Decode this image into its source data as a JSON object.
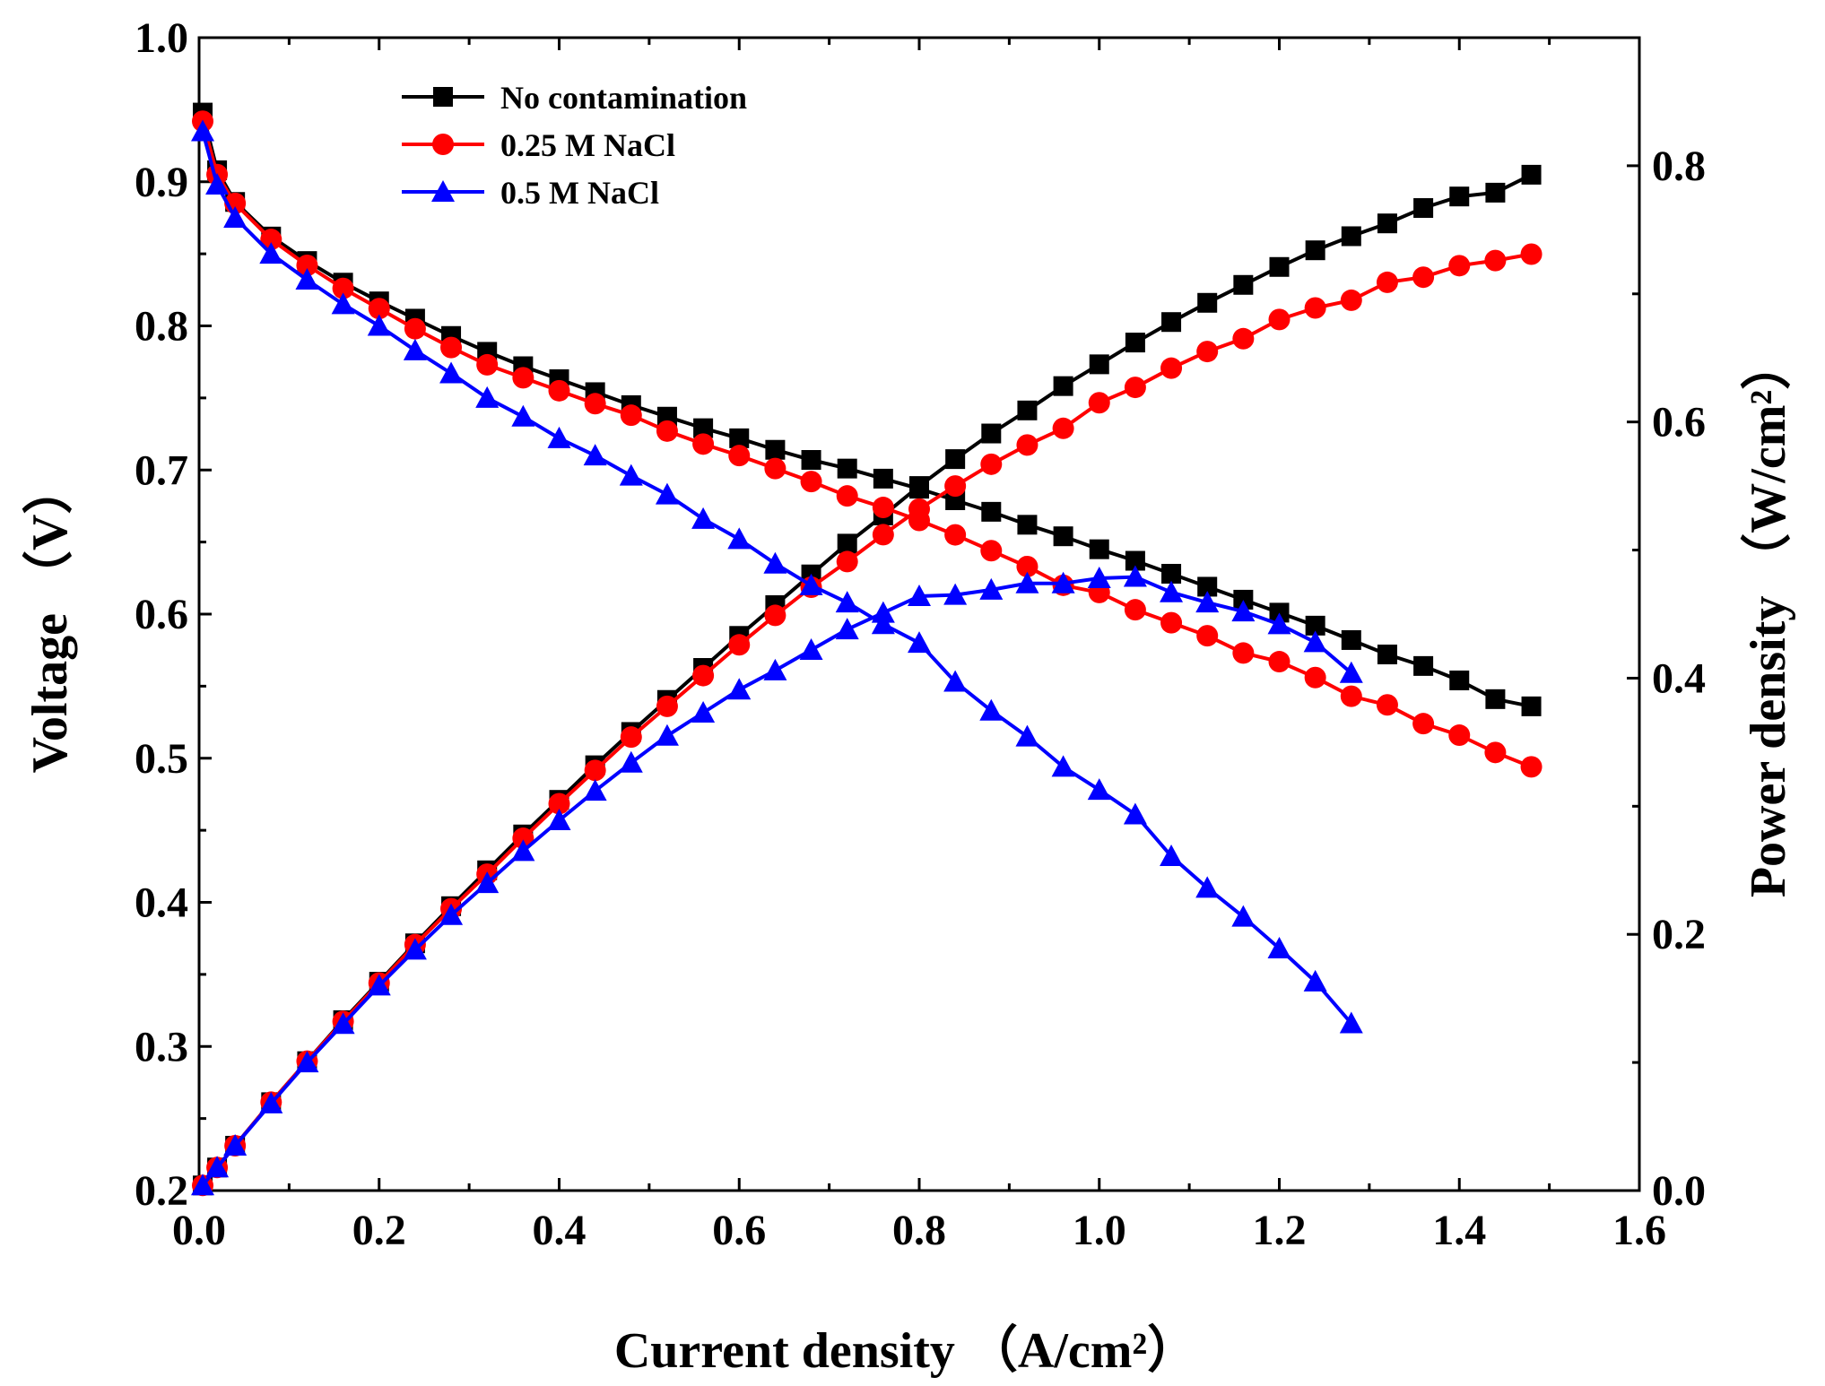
{
  "chart_data": {
    "type": "line",
    "title": "",
    "xlabel": "Current density",
    "xlabel_unit": "（A/cm²）",
    "ylabel_left": "Voltage",
    "ylabel_left_unit": "（V）",
    "ylabel_right": "Power density",
    "ylabel_right_unit": "（W/cm²）",
    "xlim": [
      0.0,
      1.6
    ],
    "ylim_left": [
      0.2,
      1.0
    ],
    "ylim_right": [
      0.0,
      0.9
    ],
    "x_ticks": [
      "0.0",
      "0.2",
      "0.4",
      "0.6",
      "0.8",
      "1.0",
      "1.2",
      "1.4",
      "1.6"
    ],
    "y_left_ticks": [
      "0.2",
      "0.3",
      "0.4",
      "0.5",
      "0.6",
      "0.7",
      "0.8",
      "0.9",
      "1.0"
    ],
    "y_right_ticks": [
      "0.0",
      "0.2",
      "0.4",
      "0.6",
      "0.8"
    ],
    "legend_position": "top-left",
    "series": [
      {
        "name": "No contamination",
        "color": "#000000",
        "marker": "square",
        "x": [
          0.004,
          0.02,
          0.04,
          0.08,
          0.12,
          0.16,
          0.2,
          0.24,
          0.28,
          0.32,
          0.36,
          0.4,
          0.44,
          0.48,
          0.52,
          0.56,
          0.6,
          0.64,
          0.68,
          0.72,
          0.76,
          0.8,
          0.84,
          0.88,
          0.92,
          0.96,
          1.0,
          1.04,
          1.08,
          1.12,
          1.16,
          1.2,
          1.24,
          1.28,
          1.32,
          1.36,
          1.4,
          1.44,
          1.48
        ],
        "voltage": [
          0.948,
          0.908,
          0.886,
          0.862,
          0.845,
          0.83,
          0.817,
          0.805,
          0.793,
          0.782,
          0.772,
          0.763,
          0.754,
          0.745,
          0.737,
          0.729,
          0.722,
          0.714,
          0.707,
          0.701,
          0.694,
          0.687,
          0.679,
          0.671,
          0.662,
          0.654,
          0.645,
          0.637,
          0.628,
          0.619,
          0.61,
          0.601,
          0.592,
          0.582,
          0.572,
          0.564,
          0.554,
          0.541,
          0.536
        ],
        "power": [
          0.004,
          0.018,
          0.035,
          0.069,
          0.101,
          0.133,
          0.163,
          0.193,
          0.222,
          0.25,
          0.278,
          0.305,
          0.332,
          0.358,
          0.383,
          0.408,
          0.433,
          0.457,
          0.481,
          0.505,
          0.527,
          0.55,
          0.571,
          0.591,
          0.609,
          0.628,
          0.645,
          0.662,
          0.678,
          0.693,
          0.707,
          0.721,
          0.734,
          0.745,
          0.755,
          0.767,
          0.776,
          0.779,
          0.793
        ]
      },
      {
        "name": "0.25 M NaCl",
        "color": "#ff0000",
        "marker": "circle",
        "x": [
          0.004,
          0.02,
          0.04,
          0.08,
          0.12,
          0.16,
          0.2,
          0.24,
          0.28,
          0.32,
          0.36,
          0.4,
          0.44,
          0.48,
          0.52,
          0.56,
          0.6,
          0.64,
          0.68,
          0.72,
          0.76,
          0.8,
          0.84,
          0.88,
          0.92,
          0.96,
          1.0,
          1.04,
          1.08,
          1.12,
          1.16,
          1.2,
          1.24,
          1.28,
          1.32,
          1.36,
          1.4,
          1.44,
          1.48
        ],
        "voltage": [
          0.942,
          0.905,
          0.885,
          0.86,
          0.842,
          0.826,
          0.812,
          0.798,
          0.785,
          0.773,
          0.764,
          0.755,
          0.746,
          0.738,
          0.727,
          0.718,
          0.71,
          0.701,
          0.692,
          0.682,
          0.674,
          0.665,
          0.655,
          0.644,
          0.633,
          0.62,
          0.615,
          0.603,
          0.594,
          0.585,
          0.573,
          0.567,
          0.556,
          0.543,
          0.537,
          0.524,
          0.516,
          0.504,
          0.494
        ],
        "power": [
          0.004,
          0.018,
          0.035,
          0.069,
          0.101,
          0.132,
          0.162,
          0.192,
          0.22,
          0.247,
          0.275,
          0.302,
          0.328,
          0.354,
          0.378,
          0.402,
          0.426,
          0.449,
          0.471,
          0.491,
          0.512,
          0.532,
          0.55,
          0.567,
          0.582,
          0.595,
          0.615,
          0.627,
          0.642,
          0.655,
          0.665,
          0.68,
          0.689,
          0.695,
          0.709,
          0.713,
          0.722,
          0.726,
          0.731
        ]
      },
      {
        "name": "0.5 M NaCl",
        "color": "#0000ff",
        "marker": "triangle",
        "x": [
          0.004,
          0.02,
          0.04,
          0.08,
          0.12,
          0.16,
          0.2,
          0.24,
          0.28,
          0.32,
          0.36,
          0.4,
          0.44,
          0.48,
          0.52,
          0.56,
          0.6,
          0.64,
          0.68,
          0.72,
          0.76,
          0.8,
          0.84,
          0.88,
          0.92,
          0.96,
          1.0,
          1.04,
          1.08,
          1.12,
          1.16,
          1.2,
          1.24,
          1.28
        ],
        "voltage": [
          0.935,
          0.898,
          0.875,
          0.85,
          0.832,
          0.815,
          0.8,
          0.783,
          0.767,
          0.75,
          0.737,
          0.722,
          0.71,
          0.696,
          0.683,
          0.666,
          0.652,
          0.635,
          0.62,
          0.608,
          0.593,
          0.58,
          0.553,
          0.533,
          0.515,
          0.494,
          0.478,
          0.461,
          0.432,
          0.41,
          0.39,
          0.368,
          0.345,
          0.316
        ],
        "power": [
          0.004,
          0.018,
          0.035,
          0.068,
          0.1,
          0.13,
          0.16,
          0.188,
          0.215,
          0.24,
          0.265,
          0.289,
          0.312,
          0.334,
          0.355,
          0.373,
          0.391,
          0.406,
          0.422,
          0.438,
          0.451,
          0.464,
          0.465,
          0.469,
          0.474,
          0.474,
          0.478,
          0.479,
          0.467,
          0.459,
          0.452,
          0.442,
          0.428,
          0.404
        ]
      }
    ]
  }
}
